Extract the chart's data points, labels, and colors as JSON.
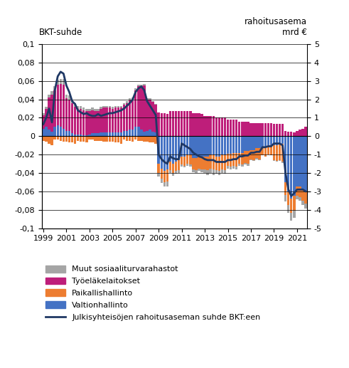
{
  "years": [
    1999,
    2000,
    2001,
    2002,
    2003,
    2004,
    2005,
    2006,
    2007,
    2008,
    2009,
    2010,
    2011,
    2012,
    2013,
    2014,
    2015,
    2016,
    2017,
    2018,
    2019,
    2020,
    2021
  ],
  "quarters_per_year": 4,
  "valtionhallinto": [
    0.008,
    0.01,
    0.007,
    0.005,
    0.01,
    0.012,
    0.01,
    0.008,
    0.006,
    0.006,
    0.003,
    0.002,
    0.002,
    0.002,
    0.001,
    0.001,
    0.002,
    0.003,
    0.003,
    0.003,
    0.004,
    0.004,
    0.004,
    0.004,
    0.004,
    0.004,
    0.004,
    0.004,
    0.006,
    0.006,
    0.007,
    0.007,
    0.01,
    0.01,
    0.007,
    0.005,
    0.006,
    0.007,
    0.005,
    0.004,
    -0.03,
    -0.035,
    -0.038,
    -0.036,
    -0.028,
    -0.03,
    -0.028,
    -0.026,
    -0.022,
    -0.022,
    -0.02,
    -0.02,
    -0.024,
    -0.024,
    -0.022,
    -0.022,
    -0.022,
    -0.022,
    -0.02,
    -0.02,
    -0.022,
    -0.022,
    -0.02,
    -0.02,
    -0.019,
    -0.019,
    -0.018,
    -0.018,
    -0.018,
    -0.018,
    -0.016,
    -0.016,
    -0.015,
    -0.015,
    -0.013,
    -0.013,
    -0.012,
    -0.012,
    -0.01,
    -0.01,
    -0.01,
    -0.01,
    -0.008,
    -0.008,
    -0.05,
    -0.06,
    -0.068,
    -0.065,
    -0.055,
    -0.055,
    -0.058,
    -0.06
  ],
  "paikallishallinto": [
    -0.005,
    -0.006,
    -0.008,
    -0.01,
    -0.004,
    -0.004,
    -0.005,
    -0.006,
    -0.006,
    -0.007,
    -0.007,
    -0.008,
    -0.005,
    -0.006,
    -0.006,
    -0.007,
    -0.004,
    -0.004,
    -0.005,
    -0.005,
    -0.005,
    -0.006,
    -0.006,
    -0.006,
    -0.006,
    -0.007,
    -0.007,
    -0.008,
    -0.004,
    -0.005,
    -0.005,
    -0.006,
    -0.004,
    -0.005,
    -0.005,
    -0.006,
    -0.006,
    -0.007,
    -0.007,
    -0.008,
    -0.01,
    -0.011,
    -0.012,
    -0.013,
    -0.009,
    -0.01,
    -0.01,
    -0.011,
    -0.009,
    -0.01,
    -0.01,
    -0.011,
    -0.012,
    -0.013,
    -0.013,
    -0.014,
    -0.014,
    -0.015,
    -0.015,
    -0.016,
    -0.015,
    -0.016,
    -0.016,
    -0.017,
    -0.013,
    -0.014,
    -0.014,
    -0.015,
    -0.012,
    -0.013,
    -0.013,
    -0.014,
    -0.01,
    -0.011,
    -0.011,
    -0.012,
    -0.009,
    -0.01,
    -0.01,
    -0.011,
    -0.016,
    -0.017,
    -0.018,
    -0.02,
    -0.014,
    -0.015,
    -0.015,
    -0.016,
    -0.01,
    -0.011,
    -0.012,
    -0.013
  ],
  "tyoelake": [
    0.015,
    0.02,
    0.035,
    0.04,
    0.04,
    0.044,
    0.047,
    0.048,
    0.035,
    0.034,
    0.033,
    0.03,
    0.028,
    0.028,
    0.027,
    0.026,
    0.025,
    0.025,
    0.024,
    0.024,
    0.026,
    0.027,
    0.027,
    0.027,
    0.026,
    0.027,
    0.027,
    0.027,
    0.028,
    0.03,
    0.032,
    0.033,
    0.04,
    0.044,
    0.047,
    0.05,
    0.034,
    0.033,
    0.032,
    0.03,
    0.026,
    0.025,
    0.025,
    0.024,
    0.027,
    0.027,
    0.027,
    0.027,
    0.027,
    0.027,
    0.027,
    0.027,
    0.025,
    0.025,
    0.025,
    0.024,
    0.022,
    0.022,
    0.022,
    0.022,
    0.02,
    0.02,
    0.02,
    0.02,
    0.018,
    0.018,
    0.018,
    0.018,
    0.016,
    0.016,
    0.016,
    0.016,
    0.014,
    0.014,
    0.014,
    0.014,
    0.014,
    0.014,
    0.014,
    0.014,
    0.013,
    0.013,
    0.013,
    0.013,
    0.006,
    0.005,
    0.005,
    0.004,
    0.006,
    0.007,
    0.008,
    0.01
  ],
  "muut": [
    0.002,
    0.002,
    0.003,
    0.004,
    0.004,
    0.005,
    0.005,
    0.006,
    0.004,
    0.004,
    0.004,
    0.004,
    0.003,
    0.003,
    0.003,
    0.003,
    0.003,
    0.003,
    0.003,
    0.003,
    0.002,
    0.002,
    0.002,
    0.002,
    0.002,
    0.002,
    0.002,
    0.002,
    0.002,
    0.002,
    0.002,
    0.002,
    0.002,
    0.002,
    0.002,
    0.002,
    0.001,
    0.001,
    0.001,
    0.001,
    -0.004,
    -0.005,
    -0.005,
    -0.006,
    -0.003,
    -0.003,
    -0.003,
    -0.003,
    -0.002,
    -0.002,
    -0.002,
    -0.002,
    -0.003,
    -0.003,
    -0.003,
    -0.003,
    -0.004,
    -0.005,
    -0.005,
    -0.006,
    -0.004,
    -0.004,
    -0.004,
    -0.004,
    -0.003,
    -0.003,
    -0.003,
    -0.003,
    -0.002,
    -0.002,
    -0.002,
    -0.002,
    -0.001,
    -0.001,
    -0.001,
    -0.001,
    0.0,
    0.0,
    0.0,
    0.0,
    -0.001,
    -0.001,
    -0.001,
    -0.001,
    -0.007,
    -0.008,
    -0.009,
    -0.008,
    -0.004,
    -0.004,
    -0.005,
    -0.006
  ],
  "line_bkt": [
    0.013,
    0.02,
    0.03,
    0.015,
    0.05,
    0.065,
    0.07,
    0.068,
    0.055,
    0.048,
    0.038,
    0.035,
    0.028,
    0.026,
    0.024,
    0.025,
    0.023,
    0.022,
    0.022,
    0.024,
    0.022,
    0.023,
    0.024,
    0.025,
    0.025,
    0.026,
    0.027,
    0.028,
    0.03,
    0.033,
    0.036,
    0.04,
    0.048,
    0.052,
    0.054,
    0.05,
    0.038,
    0.033,
    0.028,
    0.023,
    -0.02,
    -0.025,
    -0.028,
    -0.03,
    -0.022,
    -0.024,
    -0.025,
    -0.025,
    -0.008,
    -0.01,
    -0.012,
    -0.014,
    -0.018,
    -0.02,
    -0.022,
    -0.023,
    -0.025,
    -0.026,
    -0.026,
    -0.026,
    -0.028,
    -0.028,
    -0.028,
    -0.028,
    -0.026,
    -0.026,
    -0.025,
    -0.025,
    -0.022,
    -0.022,
    -0.021,
    -0.021,
    -0.018,
    -0.018,
    -0.017,
    -0.017,
    -0.012,
    -0.012,
    -0.011,
    -0.011,
    -0.008,
    -0.008,
    -0.008,
    -0.01,
    -0.04,
    -0.058,
    -0.065,
    -0.062,
    -0.058,
    -0.058,
    -0.058,
    -0.06
  ],
  "ylabel_left": "BKT-suhde",
  "ylabel_right": "rahoitusasema\nmrd €",
  "ylim_left": [
    -0.1,
    0.1
  ],
  "ylim_right": [
    -5,
    5
  ],
  "yticks_left": [
    -0.1,
    -0.08,
    -0.06,
    -0.04,
    -0.02,
    0,
    0.02,
    0.04,
    0.06,
    0.08,
    0.1
  ],
  "yticks_right": [
    -5,
    -4,
    -3,
    -2,
    -1,
    0,
    1,
    2,
    3,
    4,
    5
  ],
  "xtick_years": [
    1999,
    2001,
    2003,
    2005,
    2007,
    2009,
    2011,
    2013,
    2015,
    2017,
    2019,
    2021
  ],
  "color_valtionhallinto": "#4472C4",
  "color_paikallishallinto": "#ED7D31",
  "color_tyoelake": "#BE1E7A",
  "color_muut": "#A5A5A5",
  "color_line": "#1F3864",
  "legend_labels": [
    "Muut sosiaaliturvarahastot",
    "Työeläkelaitokset",
    "Paikallishallinto",
    "Valtionhallinto",
    "Julkisyhteisöjen rahoitusaseman suhde BKT:een"
  ]
}
